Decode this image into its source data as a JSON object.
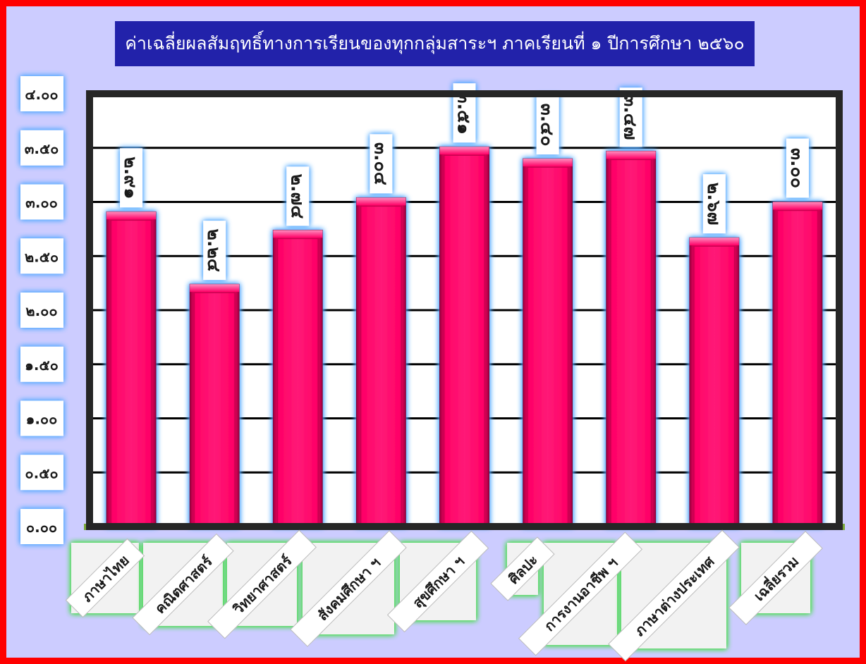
{
  "title": "ค่าเฉลี่ยผลสัมฤทธิ์ทางการเรียนของทุกกลุ่มสาระฯ ภาคเรียนที่ ๑ ปีการศึกษา ๒๕๖๐",
  "colors": {
    "frame": "#ff0000",
    "background": "#ccccff",
    "title_bg": "#2222aa",
    "bar": "#ff0066",
    "plot_border": "#262626",
    "glow_blue": "#4fa8ff",
    "glow_green": "#40e040"
  },
  "chart_data": {
    "type": "bar",
    "title": "ค่าเฉลี่ยผลสัมฤทธิ์ทางการเรียนของทุกกลุ่มสาระฯ ภาคเรียนที่ ๑ ปีการศึกษา ๒๕๖๐",
    "xlabel": "",
    "ylabel": "",
    "ylim": [
      0,
      4
    ],
    "grid": true,
    "legend": "none",
    "categories": [
      "ภาษาไทย",
      "คณิตศาสตร์",
      "วิทยาศาสตร์",
      "สังคมศึกษา ฯ",
      "สุขศึกษา ฯ",
      "ศิลปะ",
      "การงานอาชีพ ฯ",
      "ภาษาต่างประเทศ",
      "เฉลี่ยรวม"
    ],
    "values": [
      2.91,
      2.24,
      2.74,
      3.04,
      3.51,
      3.4,
      3.47,
      2.67,
      3.0
    ],
    "value_labels": [
      "๒.๙๑",
      "๒.๒๔",
      "๒.๗๔",
      "๓.๐๔",
      "๓.๕๑",
      "๓.๔๐",
      "๓.๔๗",
      "๒.๖๗",
      "๓.๐๐"
    ],
    "yticks": [
      0,
      0.5,
      1,
      1.5,
      2,
      2.5,
      3,
      3.5,
      4
    ],
    "ytick_labels": [
      "๐.๐๐",
      "๐.๕๐",
      "๑.๐๐",
      "๑.๕๐",
      "๒.๐๐",
      "๒.๕๐",
      "๓.๐๐",
      "๓.๕๐",
      "๔.๐๐"
    ]
  }
}
